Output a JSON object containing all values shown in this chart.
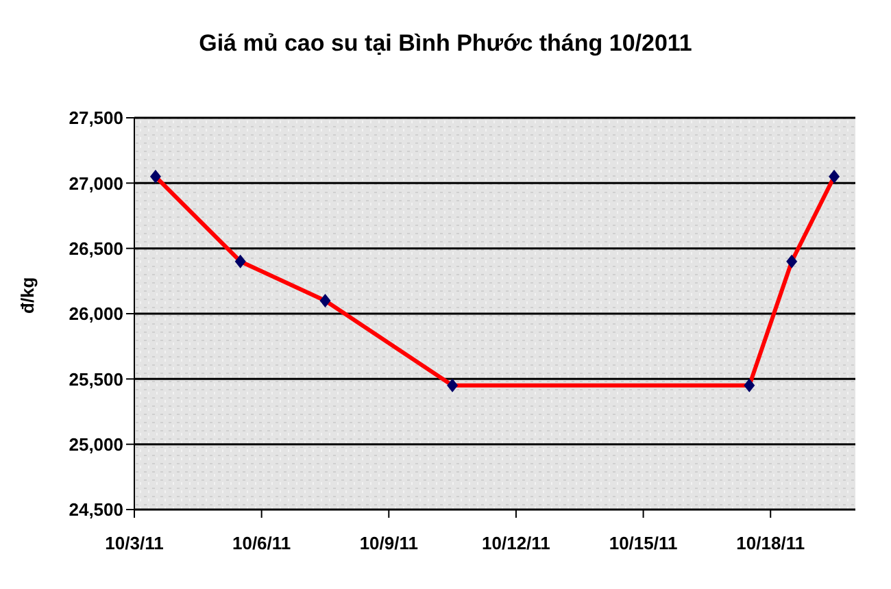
{
  "chart_data": {
    "type": "line",
    "title": "Giá mủ cao su tại Bình Phước tháng 10/2011",
    "ylabel": "đ/kg",
    "x": [
      "2011-10-03T12:00",
      "2011-10-05T12:00",
      "2011-10-07T12:00",
      "2011-10-10T12:00",
      "2011-10-17T12:00",
      "2011-10-18T12:00",
      "2011-10-19T12:00"
    ],
    "series": [
      {
        "color": "#ff0000",
        "values": [
          27050,
          26400,
          26100,
          25450,
          25450,
          26400,
          27050
        ]
      }
    ],
    "marker": "diamond",
    "line_style": "solid",
    "grid": "y",
    "legend": false,
    "xlim": [
      "2011-10-03",
      "2011-10-20"
    ],
    "xticks": [
      {
        "value": "2011-10-03",
        "label": "10/3/11"
      },
      {
        "value": "2011-10-06",
        "label": "10/6/11"
      },
      {
        "value": "2011-10-09",
        "label": "10/9/11"
      },
      {
        "value": "2011-10-12",
        "label": "10/12/11"
      },
      {
        "value": "2011-10-15",
        "label": "10/15/11"
      },
      {
        "value": "2011-10-18",
        "label": "10/18/11"
      }
    ],
    "ylim": [
      24500,
      27500
    ],
    "yticks": [
      {
        "value": 24500,
        "label": "24,500"
      },
      {
        "value": 25000,
        "label": "25,000"
      },
      {
        "value": 25500,
        "label": "25,500"
      },
      {
        "value": 26000,
        "label": "26,000"
      },
      {
        "value": 26500,
        "label": "26,500"
      },
      {
        "value": 27000,
        "label": "27,000"
      },
      {
        "value": 27500,
        "label": "27,500"
      }
    ]
  }
}
